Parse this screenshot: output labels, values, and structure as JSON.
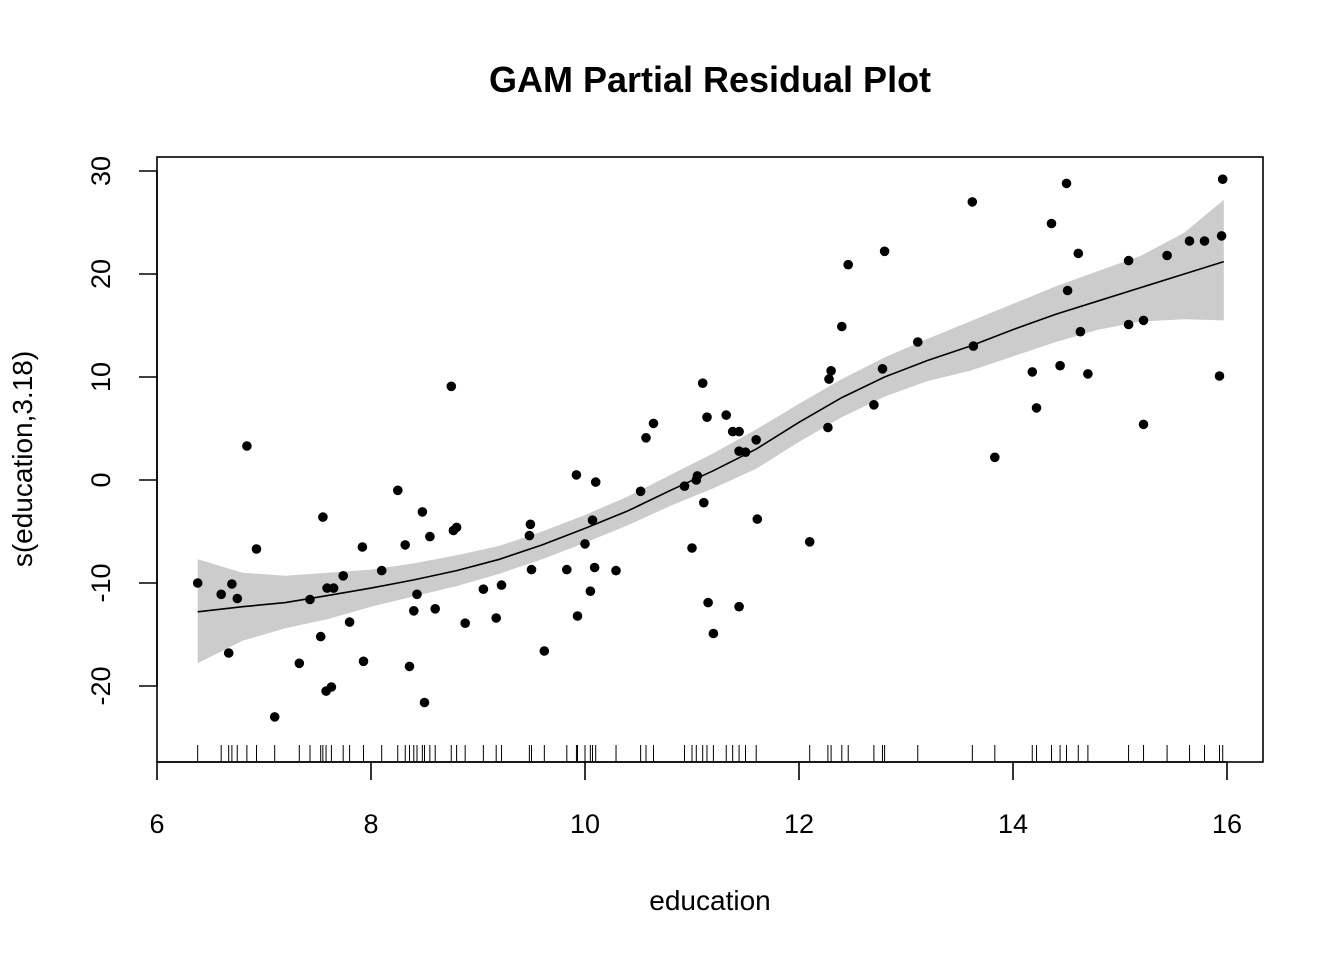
{
  "chart_data": {
    "type": "scatter",
    "title": "GAM Partial Residual Plot",
    "xlabel": "education",
    "ylabel": "s(education,3.18)",
    "xlim": [
      6,
      16
    ],
    "ylim": [
      -27,
      30
    ],
    "x_ticks": [
      "6",
      "8",
      "10",
      "12",
      "14",
      "16"
    ],
    "y_ticks": [
      "-20",
      "-10",
      "0",
      "10",
      "20",
      "30"
    ],
    "smooth": {
      "x": [
        6.38,
        6.8,
        7.2,
        7.6,
        8.0,
        8.4,
        8.8,
        9.2,
        9.6,
        10.0,
        10.4,
        10.8,
        11.2,
        11.6,
        12.0,
        12.4,
        12.8,
        13.2,
        13.6,
        14.0,
        14.4,
        14.8,
        15.2,
        15.6,
        15.97
      ],
      "fit": [
        -12.8,
        -12.3,
        -11.9,
        -11.2,
        -10.5,
        -9.7,
        -8.8,
        -7.7,
        -6.3,
        -4.7,
        -3.0,
        -1.0,
        0.9,
        3.0,
        5.6,
        8.0,
        10.0,
        11.6,
        13.0,
        14.6,
        16.1,
        17.4,
        18.7,
        20.0,
        21.2
      ],
      "upper": [
        -7.7,
        -9.0,
        -9.3,
        -9.0,
        -8.7,
        -8.1,
        -7.3,
        -6.4,
        -5.0,
        -3.4,
        -1.6,
        0.5,
        2.6,
        4.9,
        7.4,
        9.8,
        11.9,
        13.7,
        15.4,
        17.1,
        18.8,
        20.3,
        21.8,
        24.0,
        27.2
      ],
      "lower": [
        -17.8,
        -15.6,
        -14.4,
        -13.5,
        -12.3,
        -11.3,
        -10.3,
        -9.1,
        -7.7,
        -6.1,
        -4.4,
        -2.5,
        -0.8,
        1.1,
        3.7,
        6.1,
        8.1,
        9.6,
        10.6,
        12.0,
        13.4,
        14.6,
        15.4,
        15.6,
        15.5
      ]
    },
    "points": [
      [
        6.38,
        -10.0
      ],
      [
        6.6,
        -11.1
      ],
      [
        6.67,
        -16.8
      ],
      [
        6.7,
        -10.1
      ],
      [
        6.75,
        -11.5
      ],
      [
        6.84,
        3.3
      ],
      [
        6.93,
        -6.7
      ],
      [
        7.1,
        -23.0
      ],
      [
        7.33,
        -17.8
      ],
      [
        7.43,
        -11.6
      ],
      [
        7.53,
        -15.2
      ],
      [
        7.55,
        -3.6
      ],
      [
        7.58,
        -20.5
      ],
      [
        7.59,
        -10.5
      ],
      [
        7.63,
        -20.1
      ],
      [
        7.65,
        -10.5
      ],
      [
        7.74,
        -9.3
      ],
      [
        7.8,
        -13.8
      ],
      [
        7.92,
        -6.5
      ],
      [
        7.93,
        -17.6
      ],
      [
        8.1,
        -8.8
      ],
      [
        8.25,
        -1.0
      ],
      [
        8.32,
        -6.3
      ],
      [
        8.36,
        -18.1
      ],
      [
        8.4,
        -12.7
      ],
      [
        8.43,
        -11.1
      ],
      [
        8.48,
        -3.1
      ],
      [
        8.5,
        -21.6
      ],
      [
        8.55,
        -5.5
      ],
      [
        8.6,
        -12.5
      ],
      [
        8.75,
        9.1
      ],
      [
        8.77,
        -4.9
      ],
      [
        8.8,
        -4.6
      ],
      [
        8.88,
        -13.9
      ],
      [
        9.05,
        -10.6
      ],
      [
        9.17,
        -13.4
      ],
      [
        9.22,
        -10.2
      ],
      [
        9.48,
        -5.4
      ],
      [
        9.49,
        -4.3
      ],
      [
        9.5,
        -8.7
      ],
      [
        9.62,
        -16.6
      ],
      [
        9.83,
        -8.7
      ],
      [
        9.92,
        0.5
      ],
      [
        9.93,
        -13.2
      ],
      [
        10.0,
        -6.2
      ],
      [
        10.05,
        -10.8
      ],
      [
        10.07,
        -3.9
      ],
      [
        10.09,
        -8.5
      ],
      [
        10.1,
        -0.2
      ],
      [
        10.29,
        -8.8
      ],
      [
        10.52,
        -1.1
      ],
      [
        10.57,
        4.1
      ],
      [
        10.64,
        5.5
      ],
      [
        10.93,
        -0.6
      ],
      [
        11.0,
        -6.6
      ],
      [
        11.04,
        0.0
      ],
      [
        11.05,
        0.4
      ],
      [
        11.1,
        9.4
      ],
      [
        11.11,
        -2.2
      ],
      [
        11.14,
        6.1
      ],
      [
        11.15,
        -11.9
      ],
      [
        11.2,
        -14.9
      ],
      [
        11.32,
        6.3
      ],
      [
        11.38,
        4.7
      ],
      [
        11.44,
        4.7
      ],
      [
        11.44,
        2.8
      ],
      [
        11.44,
        -12.3
      ],
      [
        11.5,
        2.7
      ],
      [
        11.6,
        3.9
      ],
      [
        11.61,
        -3.8
      ],
      [
        12.1,
        -6.0
      ],
      [
        12.27,
        5.1
      ],
      [
        12.28,
        9.8
      ],
      [
        12.3,
        10.6
      ],
      [
        12.4,
        14.9
      ],
      [
        12.46,
        20.9
      ],
      [
        12.7,
        7.3
      ],
      [
        12.78,
        10.8
      ],
      [
        12.8,
        22.2
      ],
      [
        13.11,
        13.4
      ],
      [
        13.62,
        27.0
      ],
      [
        13.63,
        13.0
      ],
      [
        13.83,
        2.2
      ],
      [
        14.18,
        10.5
      ],
      [
        14.22,
        7.0
      ],
      [
        14.36,
        24.9
      ],
      [
        14.44,
        11.1
      ],
      [
        14.5,
        28.8
      ],
      [
        14.51,
        18.4
      ],
      [
        14.61,
        22.0
      ],
      [
        14.63,
        14.4
      ],
      [
        14.7,
        10.3
      ],
      [
        15.08,
        21.3
      ],
      [
        15.08,
        15.1
      ],
      [
        15.22,
        5.4
      ],
      [
        15.22,
        15.5
      ],
      [
        15.44,
        21.8
      ],
      [
        15.65,
        23.2
      ],
      [
        15.79,
        23.2
      ],
      [
        15.93,
        10.1
      ],
      [
        15.95,
        23.7
      ],
      [
        15.96,
        29.2
      ]
    ],
    "rug_x": [
      6.38,
      6.6,
      6.67,
      6.7,
      6.75,
      6.84,
      6.93,
      7.1,
      7.33,
      7.43,
      7.53,
      7.55,
      7.58,
      7.63,
      7.74,
      7.8,
      7.93,
      8.1,
      8.25,
      8.32,
      8.36,
      8.4,
      8.43,
      8.48,
      8.5,
      8.55,
      8.6,
      8.75,
      8.8,
      8.88,
      9.05,
      9.17,
      9.22,
      9.48,
      9.5,
      9.62,
      9.83,
      9.92,
      9.93,
      10.0,
      10.05,
      10.07,
      10.1,
      10.29,
      10.52,
      10.57,
      10.64,
      10.93,
      11.0,
      11.04,
      11.1,
      11.14,
      11.2,
      11.32,
      11.38,
      11.44,
      11.5,
      11.6,
      12.1,
      12.27,
      12.3,
      12.4,
      12.46,
      12.7,
      12.78,
      12.8,
      13.11,
      13.62,
      13.83,
      14.18,
      14.22,
      14.36,
      14.44,
      14.5,
      14.61,
      14.7,
      15.08,
      15.22,
      15.44,
      15.65,
      15.79,
      15.93,
      15.96
    ],
    "colors": {
      "points": "#000000",
      "band": "#cccccc",
      "line": "#000000"
    },
    "grid": false,
    "legend": "none"
  }
}
